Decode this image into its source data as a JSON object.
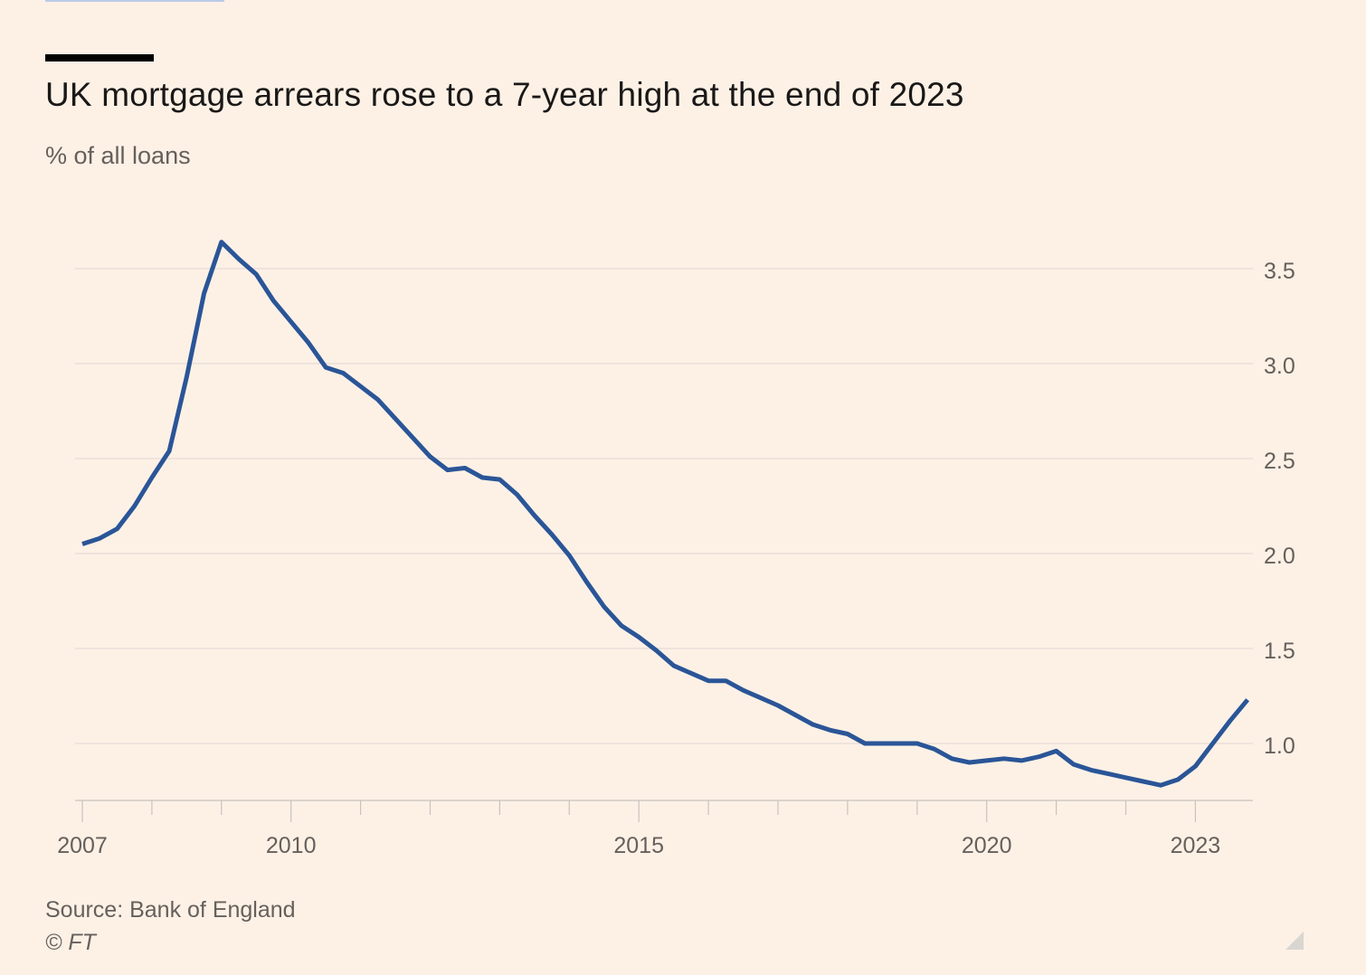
{
  "chart_data": {
    "type": "line",
    "title": "UK mortgage arrears rose to a 7-year high at the end of 2023",
    "subtitle": "% of all loans",
    "xlabel": "",
    "ylabel": "% of all loans",
    "ylim": [
      0.7,
      3.7
    ],
    "xlim": [
      2007.0,
      2023.75
    ],
    "y_ticks": [
      1.0,
      1.5,
      2.0,
      2.5,
      3.0,
      3.5
    ],
    "y_tick_labels": [
      "1.0",
      "1.5",
      "2.0",
      "2.5",
      "3.0",
      "3.5"
    ],
    "x_tick_labels": [
      "2007",
      "2010",
      "2015",
      "2020",
      "2023"
    ],
    "x_tick_label_years": [
      2007,
      2010,
      2015,
      2020,
      2023
    ],
    "x_minor_tick_years": [
      2007,
      2008,
      2009,
      2010,
      2011,
      2012,
      2013,
      2014,
      2015,
      2016,
      2017,
      2018,
      2019,
      2020,
      2021,
      2022,
      2023
    ],
    "y_axis_side": "right",
    "grid": true,
    "legend": "none",
    "series": [
      {
        "name": "Mortgage arrears",
        "color": "#2a5597",
        "start": "2007 Q1",
        "frequency": "quarterly",
        "values": [
          2.05,
          2.08,
          2.13,
          2.25,
          2.4,
          2.54,
          2.93,
          3.37,
          3.64,
          3.55,
          3.47,
          3.33,
          3.22,
          3.11,
          2.98,
          2.95,
          2.88,
          2.81,
          2.71,
          2.61,
          2.51,
          2.44,
          2.45,
          2.4,
          2.39,
          2.31,
          2.2,
          2.1,
          1.99,
          1.85,
          1.72,
          1.62,
          1.56,
          1.49,
          1.41,
          1.37,
          1.33,
          1.33,
          1.28,
          1.24,
          1.2,
          1.15,
          1.1,
          1.07,
          1.05,
          1.0,
          1.0,
          1.0,
          1.0,
          0.97,
          0.92,
          0.9,
          0.91,
          0.92,
          0.91,
          0.93,
          0.96,
          0.89,
          0.86,
          0.84,
          0.82,
          0.8,
          0.78,
          0.81,
          0.88,
          1.0,
          1.12,
          1.23
        ]
      }
    ],
    "source": "Source: Bank of England",
    "copyright": "© FT"
  },
  "colors": {
    "background": "#fdf1e6",
    "line": "#2a5597",
    "grid": "#e6ddd6",
    "axis": "#c9c3bd",
    "tick_text": "#66605c"
  }
}
